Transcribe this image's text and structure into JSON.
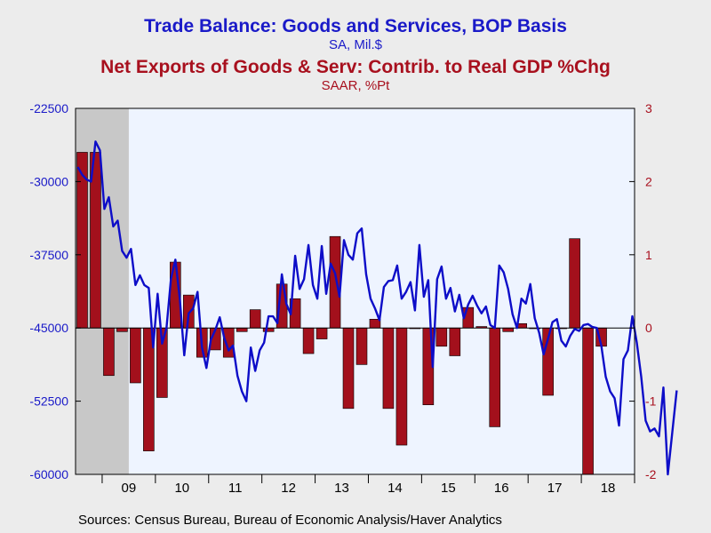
{
  "titles": {
    "title1": "Trade Balance: Goods and Services, BOP Basis",
    "subtitle1": "SA, Mil.$",
    "title2": "Net Exports of Goods & Serv: Contrib. to Real GDP %Chg",
    "subtitle2": "SAAR, %Pt"
  },
  "source": "Sources:  Census Bureau, Bureau of Economic Analysis/Haver Analytics",
  "colors": {
    "trade_line": "#0d0dc8",
    "bars": "#a3101c",
    "left_axis_text": "#1a1ac8",
    "right_axis_text": "#a8101e",
    "plot_bg": "#eef4ff",
    "recession_shade": "#c8c8c8"
  },
  "chart_data": {
    "type": "bar+line",
    "x_axis": {
      "ticks": [
        "09",
        "10",
        "11",
        "12",
        "13",
        "14",
        "15",
        "16",
        "17",
        "18"
      ],
      "range": [
        "2008-07",
        "2018-12"
      ]
    },
    "left_axis": {
      "min": -60000,
      "max": -22500,
      "ticks": [
        "-22500",
        "-30000",
        "-37500",
        "-45000",
        "-52500",
        "-60000"
      ]
    },
    "right_axis": {
      "min": -2,
      "max": 3,
      "ticks": [
        "3",
        "2",
        "1",
        "0",
        "-1",
        "-2"
      ]
    },
    "recession_shading": [
      "2008-07",
      "2009-06"
    ],
    "line_series": {
      "label": "Trade Balance: Goods and Services, BOP Basis",
      "unit": "SA, Mil.$",
      "start": "2008-07",
      "frequency": "monthly",
      "values": [
        -28500,
        -29300,
        -29800,
        -30000,
        -25900,
        -26800,
        -32800,
        -31600,
        -34600,
        -34000,
        -37100,
        -37800,
        -36900,
        -40600,
        -39600,
        -40600,
        -40900,
        -47000,
        -41500,
        -46600,
        -45000,
        -40000,
        -38000,
        -42000,
        -47800,
        -43500,
        -43000,
        -41300,
        -47000,
        -49100,
        -46200,
        -45200,
        -43900,
        -46000,
        -47300,
        -46800,
        -49900,
        -51500,
        -52500,
        -47000,
        -49400,
        -47300,
        -46500,
        -43800,
        -43800,
        -44500,
        -39500,
        -42500,
        -43600,
        -37600,
        -41000,
        -40000,
        -36500,
        -40600,
        -42000,
        -36600,
        -41500,
        -38400,
        -39400,
        -41800,
        -36000,
        -37500,
        -38000,
        -35300,
        -34800,
        -39500,
        -42000,
        -43000,
        -44200,
        -40800,
        -40200,
        -40100,
        -38600,
        -42000,
        -41300,
        -40300,
        -43200,
        -36500,
        -41800,
        -40100,
        -49000,
        -40000,
        -38700,
        -42000,
        -40900,
        -43300,
        -41600,
        -44000,
        -42600,
        -41700,
        -42700,
        -43500,
        -42800,
        -44700,
        -45000,
        -38600,
        -39300,
        -41000,
        -43600,
        -45000,
        -42000,
        -42500,
        -40500,
        -44000,
        -45500,
        -47700,
        -46100,
        -44400,
        -44100,
        -46300,
        -46900,
        -45800,
        -45100,
        -45300,
        -44700,
        -44600,
        -44900,
        -45000,
        -46800,
        -50000,
        -51500,
        -52200,
        -55000,
        -48200,
        -47300,
        -43800,
        -46500,
        -50000,
        -54500,
        -55600,
        -55300,
        -56100,
        -51100,
        -60000,
        -55700,
        -51400
      ],
      "note": "values estimated from chart"
    },
    "bar_series": {
      "label": "Net Exports of Goods & Serv: Contrib. to Real GDP %Chg",
      "unit": "SAAR, %Pt",
      "start": "2008-Q3",
      "frequency": "quarterly",
      "values": [
        2.4,
        2.4,
        -0.65,
        -0.05,
        -0.75,
        -1.68,
        -0.95,
        0.9,
        0.45,
        -0.4,
        -0.3,
        -0.4,
        -0.05,
        0.25,
        -0.05,
        0.6,
        0.4,
        -0.35,
        -0.15,
        1.25,
        -1.1,
        -0.5,
        0.12,
        -1.1,
        -1.6,
        -0.01,
        -1.05,
        -0.25,
        -0.38,
        0.28,
        0.02,
        -1.35,
        -0.05,
        0.06,
        -0.01,
        -0.92,
        -0.01,
        1.22,
        -2.0,
        -0.25
      ],
      "note": "values estimated from chart"
    }
  }
}
